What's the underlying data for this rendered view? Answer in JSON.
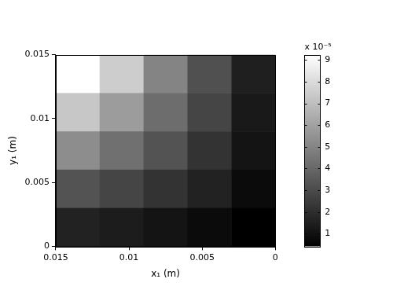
{
  "chart_data": {
    "type": "heatmap",
    "x_label": "x₁ (m)",
    "y_label": "y₁ (m)",
    "x": [
      0.0135,
      0.0105,
      0.0075,
      0.0045,
      0.0015
    ],
    "y": [
      0.0135,
      0.0105,
      0.0075,
      0.0045,
      0.0015
    ],
    "values": [
      [
        9.24e-05,
        7.5e-05,
        5e-05,
        3.2e-05,
        1.5e-05
      ],
      [
        7.3e-05,
        5.8e-05,
        4.2e-05,
        2.8e-05,
        1.3e-05
      ],
      [
        5.3e-05,
        4.3e-05,
        3.3e-05,
        2.2e-05,
        1.1e-05
      ],
      [
        3.3e-05,
        2.8e-05,
        2.2e-05,
        1.6e-05,
        8e-06
      ],
      [
        1.6e-05,
        1.4e-05,
        1.1e-05,
        8e-06,
        4.2e-06
      ]
    ],
    "xlim": [
      0.015,
      0
    ],
    "xticks": [
      0.015,
      0.01,
      0.005,
      0
    ],
    "ylim": [
      0,
      0.015
    ],
    "yticks": [
      0,
      0.005,
      0.01,
      0.015
    ],
    "color": "gray",
    "colorbar_label": "x 10⁻⁵",
    "colorbar_range": [
      4.2e-06,
      9.24e-05
    ],
    "colorbar_ticks": [
      {
        "value": 1e-05,
        "label": "1"
      },
      {
        "value": 2e-05,
        "label": "2"
      },
      {
        "value": 3e-05,
        "label": "3"
      },
      {
        "value": 4e-05,
        "label": "4"
      },
      {
        "value": 5e-05,
        "label": "5"
      },
      {
        "value": 6e-05,
        "label": "6"
      },
      {
        "value": 7e-05,
        "label": "7"
      },
      {
        "value": 8e-05,
        "label": "8"
      },
      {
        "value": 9e-05,
        "label": "9"
      }
    ]
  }
}
